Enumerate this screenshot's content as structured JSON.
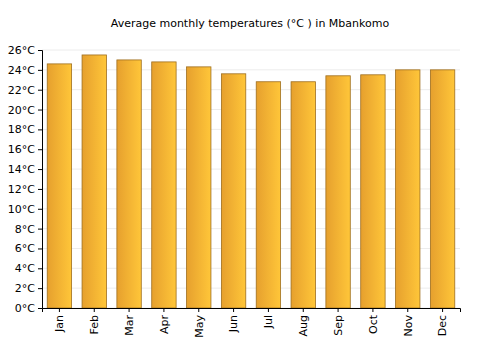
{
  "chart_data": {
    "type": "bar",
    "title": "Average monthly temperatures (°C ) in Mbankomo",
    "categories": [
      "Jan",
      "Feb",
      "Mar",
      "Apr",
      "May",
      "Jun",
      "Jul",
      "Aug",
      "Sep",
      "Oct",
      "Nov",
      "Dec"
    ],
    "values": [
      24.6,
      25.5,
      25.0,
      24.8,
      24.3,
      23.6,
      22.8,
      22.8,
      23.4,
      23.5,
      24.0,
      24.0
    ],
    "color": "#fbaf32",
    "ylim": [
      0,
      26
    ],
    "yticks": [
      {
        "value": 0,
        "label": "0°C"
      },
      {
        "value": 2,
        "label": "2°C"
      },
      {
        "value": 4,
        "label": "4°C"
      },
      {
        "value": 6,
        "label": "6°C"
      },
      {
        "value": 8,
        "label": "8°C"
      },
      {
        "value": 10,
        "label": "10°C"
      },
      {
        "value": 12,
        "label": "12°C"
      },
      {
        "value": 14,
        "label": "14°C"
      },
      {
        "value": 16,
        "label": "16°C"
      },
      {
        "value": 18,
        "label": "18°C"
      },
      {
        "value": 20,
        "label": "20°C"
      },
      {
        "value": 22,
        "label": "22°C"
      },
      {
        "value": 24,
        "label": "24°C"
      },
      {
        "value": 26,
        "label": "26°C"
      }
    ],
    "grid": true
  }
}
